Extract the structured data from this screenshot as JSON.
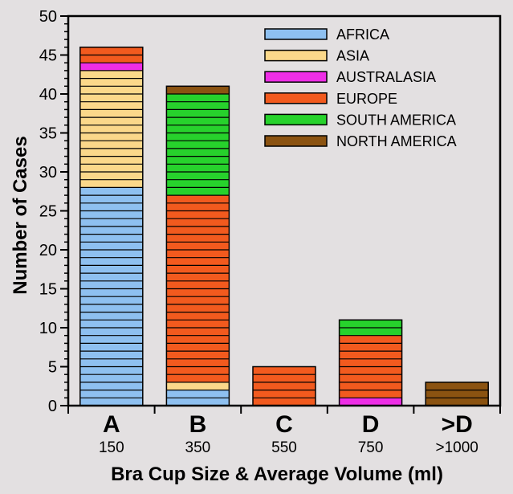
{
  "chart_data": {
    "type": "bar",
    "stacked": true,
    "categories": [
      "A",
      "B",
      "C",
      "D",
      ">D"
    ],
    "category_sublabels": [
      "150",
      "350",
      "550",
      "750",
      ">1000"
    ],
    "series": [
      {
        "name": "AFRICA",
        "color": "#8ec0f0",
        "values": [
          28,
          2,
          0,
          0,
          0
        ]
      },
      {
        "name": "ASIA",
        "color": "#fbd88a",
        "values": [
          15,
          1,
          0,
          0,
          0
        ]
      },
      {
        "name": "AUSTRALASIA",
        "color": "#ee2ee6",
        "values": [
          1,
          0,
          0,
          1,
          0
        ]
      },
      {
        "name": "EUROPE",
        "color": "#f25a1e",
        "values": [
          2,
          24,
          5,
          8,
          0
        ]
      },
      {
        "name": "SOUTH AMERICA",
        "color": "#27d22c",
        "values": [
          0,
          13,
          0,
          2,
          0
        ]
      },
      {
        "name": "NORTH AMERICA",
        "color": "#8b5311",
        "values": [
          0,
          1,
          0,
          0,
          3
        ]
      }
    ],
    "xlabel": "Bra Cup Size & Average Volume (ml)",
    "ylabel": "Number of Cases",
    "ylim": [
      0,
      50
    ],
    "yticks": [
      0,
      5,
      10,
      15,
      20,
      25,
      30,
      35,
      40,
      45,
      50
    ],
    "grid": false,
    "legend_position": "top-right"
  }
}
